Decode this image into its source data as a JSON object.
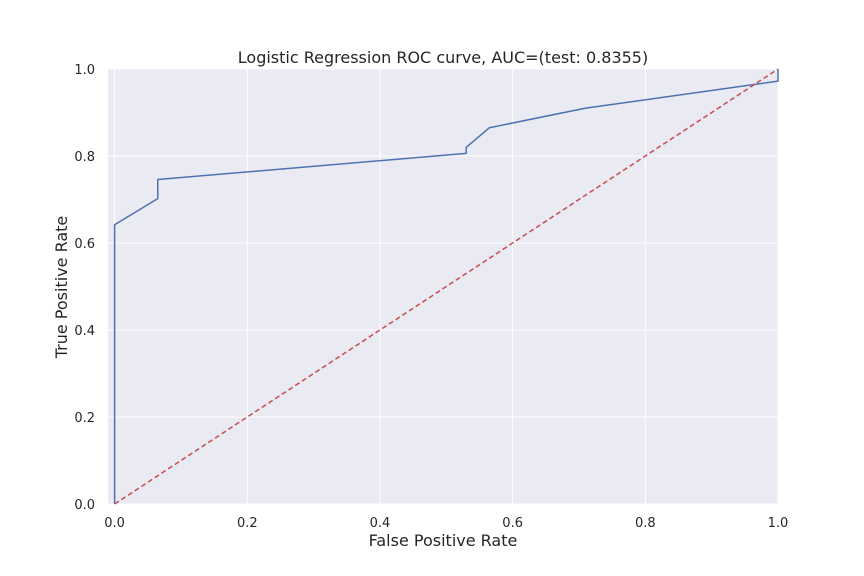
{
  "chart_data": {
    "type": "line",
    "title": "Logistic Regression ROC curve, AUC=(test: 0.8355)",
    "xlabel": "False Positive Rate",
    "ylabel": "True Positive Rate",
    "xlim": [
      -0.01,
      1.0
    ],
    "ylim": [
      0.0,
      1.0
    ],
    "xticks": [
      "0.0",
      "0.2",
      "0.4",
      "0.6",
      "0.8",
      "1.0"
    ],
    "yticks": [
      "0.0",
      "0.2",
      "0.4",
      "0.6",
      "0.8",
      "1.0"
    ],
    "grid": true,
    "legend": "none",
    "colors": {
      "background": "#eaeaf2",
      "grid": "#ffffff",
      "roc": "#4c72b0",
      "diagonal": "#c44e52"
    },
    "series": [
      {
        "style": "solid",
        "x": [
          0.0,
          0.0,
          0.065,
          0.065,
          0.53,
          0.53,
          0.565,
          0.71,
          1.0,
          1.0
        ],
        "y": [
          0.0,
          0.642,
          0.702,
          0.746,
          0.806,
          0.82,
          0.865,
          0.91,
          0.972,
          1.0
        ]
      },
      {
        "style": "dashed",
        "x": [
          0.0,
          1.0
        ],
        "y": [
          0.0,
          1.0
        ]
      }
    ]
  }
}
